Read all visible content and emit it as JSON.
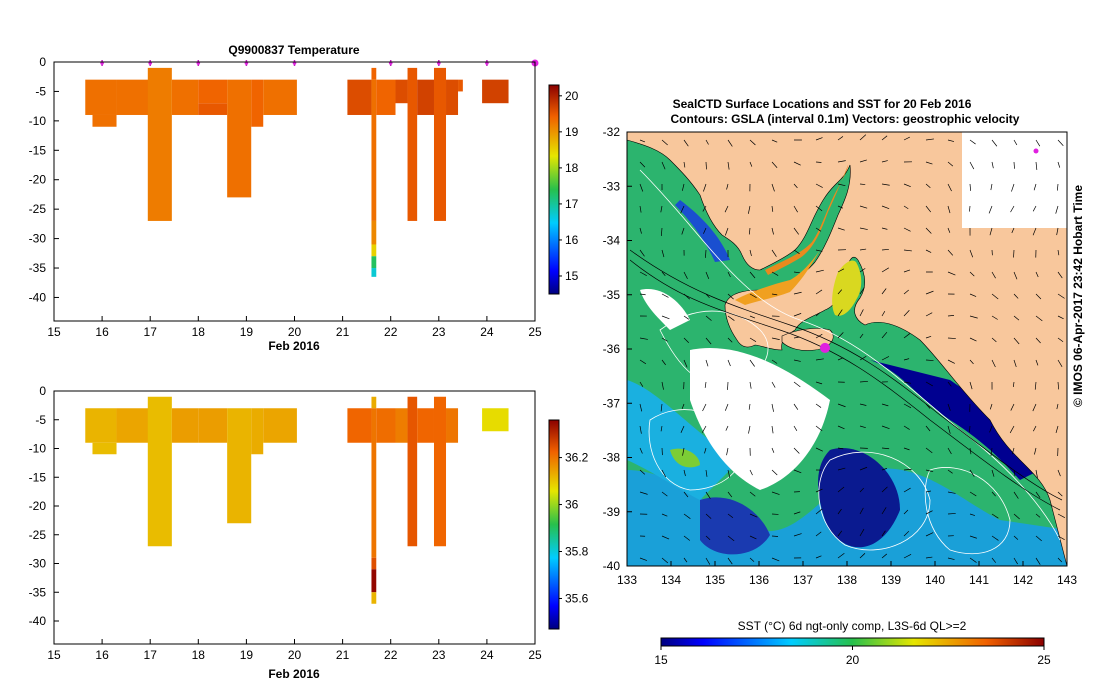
{
  "colors": {
    "land": "#f8c79c",
    "deep_blue": "#000080",
    "blue": "#1a5fd6",
    "cyan": "#1ab0e0",
    "teal": "#2cb49a",
    "green": "#2fbf55",
    "green2": "#7ccd35",
    "yellow": "#dfe22a",
    "orange": "#f5a300",
    "dark_orange": "#e07a10",
    "red_orange": "#d4560c",
    "dark_red": "#a00000",
    "magenta": "#e020e0",
    "contour": "#ffffff",
    "vector": "#000000"
  },
  "chart_data": [
    {
      "id": "temperature",
      "type": "heatmap",
      "title": "Q9900837  Temperature",
      "xlabel": "Feb 2016",
      "ylabel": "",
      "xlim": [
        15,
        25
      ],
      "ylim": [
        -44,
        0
      ],
      "xticks": [
        15,
        16,
        17,
        18,
        19,
        20,
        21,
        22,
        23,
        24,
        25
      ],
      "yticks": [
        0,
        -5,
        -10,
        -15,
        -20,
        -25,
        -30,
        -35,
        -40
      ],
      "profile_markers": [
        16,
        17,
        18,
        19,
        20,
        22,
        23,
        24,
        25
      ],
      "colorbar": {
        "min": 14.5,
        "max": 20.3,
        "ticks": [
          15,
          16,
          17,
          18,
          19,
          20
        ]
      },
      "cells": [
        {
          "x0": 15.65,
          "x1": 16.3,
          "y0": -3,
          "y1": -9,
          "v": 19.3
        },
        {
          "x0": 15.8,
          "x1": 16.3,
          "y0": -9,
          "y1": -11,
          "v": 19.3
        },
        {
          "x0": 16.3,
          "x1": 17.0,
          "y0": -3,
          "y1": -9,
          "v": 19.3
        },
        {
          "x0": 16.95,
          "x1": 17.45,
          "y0": -1,
          "y1": -27,
          "v": 19.2
        },
        {
          "x0": 17.45,
          "x1": 18.0,
          "y0": -3,
          "y1": -9,
          "v": 19.3
        },
        {
          "x0": 18.0,
          "x1": 18.6,
          "y0": -3,
          "y1": -7,
          "v": 19.4
        },
        {
          "x0": 18.0,
          "x1": 18.6,
          "y0": -7,
          "y1": -9,
          "v": 19.5
        },
        {
          "x0": 18.6,
          "x1": 19.1,
          "y0": -3,
          "y1": -23,
          "v": 19.3
        },
        {
          "x0": 19.1,
          "x1": 19.35,
          "y0": -3,
          "y1": -11,
          "v": 19.4
        },
        {
          "x0": 19.35,
          "x1": 20.05,
          "y0": -3,
          "y1": -9,
          "v": 19.3
        },
        {
          "x0": 21.1,
          "x1": 21.6,
          "y0": -3,
          "y1": -9,
          "v": 19.6
        },
        {
          "x0": 21.6,
          "x1": 21.7,
          "y0": -1,
          "y1": -3,
          "v": 19.4
        },
        {
          "x0": 21.6,
          "x1": 21.7,
          "y0": -3,
          "y1": -27,
          "v": 19.3
        },
        {
          "x0": 21.6,
          "x1": 21.7,
          "y0": -27,
          "y1": -31,
          "v": 19.1
        },
        {
          "x0": 21.6,
          "x1": 21.7,
          "y0": -31,
          "y1": -33,
          "v": 18.5
        },
        {
          "x0": 21.6,
          "x1": 21.7,
          "y0": -33,
          "y1": -35,
          "v": 17.3
        },
        {
          "x0": 21.6,
          "x1": 21.7,
          "y0": -35,
          "y1": -36.5,
          "v": 16.7
        },
        {
          "x0": 21.7,
          "x1": 22.1,
          "y0": -3,
          "y1": -9,
          "v": 19.4
        },
        {
          "x0": 22.1,
          "x1": 22.35,
          "y0": -3,
          "y1": -7,
          "v": 19.6
        },
        {
          "x0": 22.35,
          "x1": 22.55,
          "y0": -1,
          "y1": -27,
          "v": 19.5
        },
        {
          "x0": 22.55,
          "x1": 22.9,
          "y0": -3,
          "y1": -9,
          "v": 19.7
        },
        {
          "x0": 22.9,
          "x1": 23.15,
          "y0": -1,
          "y1": -27,
          "v": 19.5
        },
        {
          "x0": 23.15,
          "x1": 23.4,
          "y0": -3,
          "y1": -9,
          "v": 19.6
        },
        {
          "x0": 23.4,
          "x1": 23.5,
          "y0": -3,
          "y1": -5,
          "v": 19.5
        },
        {
          "x0": 23.9,
          "x1": 24.45,
          "y0": -3,
          "y1": -7,
          "v": 19.7
        }
      ]
    },
    {
      "id": "salinity",
      "type": "heatmap",
      "title": "",
      "xlabel": "Feb 2016",
      "ylabel": "",
      "xlim": [
        15,
        25
      ],
      "ylim": [
        -44,
        0
      ],
      "xticks": [
        15,
        16,
        17,
        18,
        19,
        20,
        21,
        22,
        23,
        24,
        25
      ],
      "yticks": [
        0,
        -5,
        -10,
        -15,
        -20,
        -25,
        -30,
        -35,
        -40
      ],
      "colorbar": {
        "min": 35.47,
        "max": 36.36,
        "ticks": [
          35.6,
          35.8,
          36,
          36.2
        ]
      },
      "cells": [
        {
          "x0": 15.65,
          "x1": 16.3,
          "y0": -3,
          "y1": -9,
          "v": 36.12
        },
        {
          "x0": 15.8,
          "x1": 16.3,
          "y0": -9,
          "y1": -11,
          "v": 36.11
        },
        {
          "x0": 16.3,
          "x1": 17.0,
          "y0": -3,
          "y1": -9,
          "v": 36.14
        },
        {
          "x0": 16.95,
          "x1": 17.45,
          "y0": -1,
          "y1": -27,
          "v": 36.11
        },
        {
          "x0": 17.45,
          "x1": 18.0,
          "y0": -3,
          "y1": -9,
          "v": 36.15
        },
        {
          "x0": 18.0,
          "x1": 18.6,
          "y0": -3,
          "y1": -9,
          "v": 36.15
        },
        {
          "x0": 18.6,
          "x1": 19.1,
          "y0": -3,
          "y1": -23,
          "v": 36.12
        },
        {
          "x0": 19.1,
          "x1": 19.35,
          "y0": -3,
          "y1": -11,
          "v": 36.13
        },
        {
          "x0": 19.35,
          "x1": 20.05,
          "y0": -3,
          "y1": -9,
          "v": 36.14
        },
        {
          "x0": 21.1,
          "x1": 21.6,
          "y0": -3,
          "y1": -9,
          "v": 36.22
        },
        {
          "x0": 21.6,
          "x1": 21.7,
          "y0": -1,
          "y1": -3,
          "v": 36.13
        },
        {
          "x0": 21.6,
          "x1": 21.7,
          "y0": -3,
          "y1": -29,
          "v": 36.2
        },
        {
          "x0": 21.6,
          "x1": 21.7,
          "y0": -29,
          "y1": -31,
          "v": 36.25
        },
        {
          "x0": 21.6,
          "x1": 21.7,
          "y0": -31,
          "y1": -35,
          "v": 36.35
        },
        {
          "x0": 21.6,
          "x1": 21.7,
          "y0": -35,
          "y1": -37,
          "v": 36.12
        },
        {
          "x0": 21.7,
          "x1": 22.1,
          "y0": -3,
          "y1": -9,
          "v": 36.21
        },
        {
          "x0": 22.1,
          "x1": 22.35,
          "y0": -3,
          "y1": -9,
          "v": 36.19
        },
        {
          "x0": 22.35,
          "x1": 22.55,
          "y0": -1,
          "y1": -27,
          "v": 36.24
        },
        {
          "x0": 22.55,
          "x1": 22.9,
          "y0": -3,
          "y1": -9,
          "v": 36.22
        },
        {
          "x0": 22.9,
          "x1": 23.15,
          "y0": -1,
          "y1": -27,
          "v": 36.22
        },
        {
          "x0": 23.15,
          "x1": 23.4,
          "y0": -3,
          "y1": -9,
          "v": 36.2
        },
        {
          "x0": 23.9,
          "x1": 24.45,
          "y0": -3,
          "y1": -7,
          "v": 36.07
        }
      ]
    },
    {
      "id": "sst_map",
      "type": "heatmap",
      "title": "SealCTD Surface Locations and SST for 20 Feb 2016",
      "subtitle": "Contours: GSLA (interval 0.1m) Vectors: geostrophic velocity",
      "xlim": [
        133,
        143
      ],
      "ylim": [
        -40,
        -32
      ],
      "xticks": [
        133,
        134,
        135,
        136,
        137,
        138,
        139,
        140,
        141,
        142,
        143
      ],
      "yticks": [
        -32,
        -33,
        -34,
        -35,
        -36,
        -37,
        -38,
        -39,
        -40
      ],
      "colorbar": {
        "label": "SST (°C) 6d ngt-only comp, L3S-6d QL>=2",
        "min": 15,
        "max": 25,
        "ticks": [
          15,
          20,
          25
        ]
      },
      "ctd_location": {
        "lon": 137.5,
        "lat": -35.98
      },
      "side_label": "© IMOS 06-Apr-2017 23:42 Hobart Time"
    }
  ]
}
